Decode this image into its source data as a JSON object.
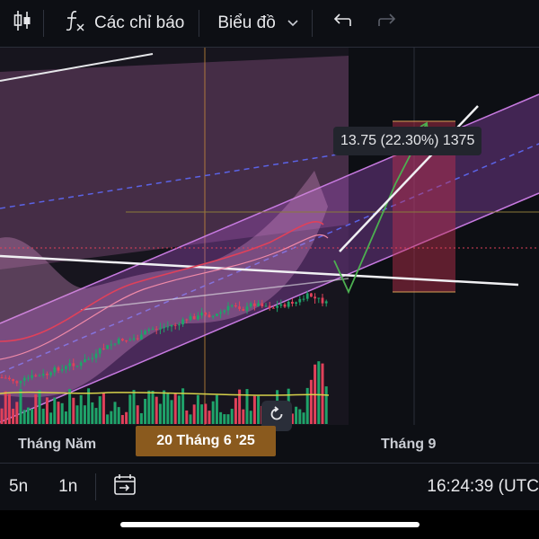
{
  "toolbar": {
    "indicators_label": "Các chỉ báo",
    "chart_label": "Biểu đồ",
    "icons": [
      "candlestick-icon",
      "function-icon",
      "chevron-down-icon",
      "undo-icon",
      "redo-icon"
    ]
  },
  "chart": {
    "time_labels": [
      "Tháng Năm",
      "Tháng 9"
    ],
    "crosshair_time": "20 Tháng 6 '25",
    "measure_text": "13.75 (22.30%) 1375"
  },
  "bottom_bar": {
    "intervals": [
      "5n",
      "1n"
    ],
    "clock": "16:24:39 (UTC"
  },
  "colors": {
    "background": "#0d0f14",
    "up": "#1fa36a",
    "down": "#e0415a",
    "channel": "#b35ad6",
    "crosshair": "#c98a3a"
  }
}
